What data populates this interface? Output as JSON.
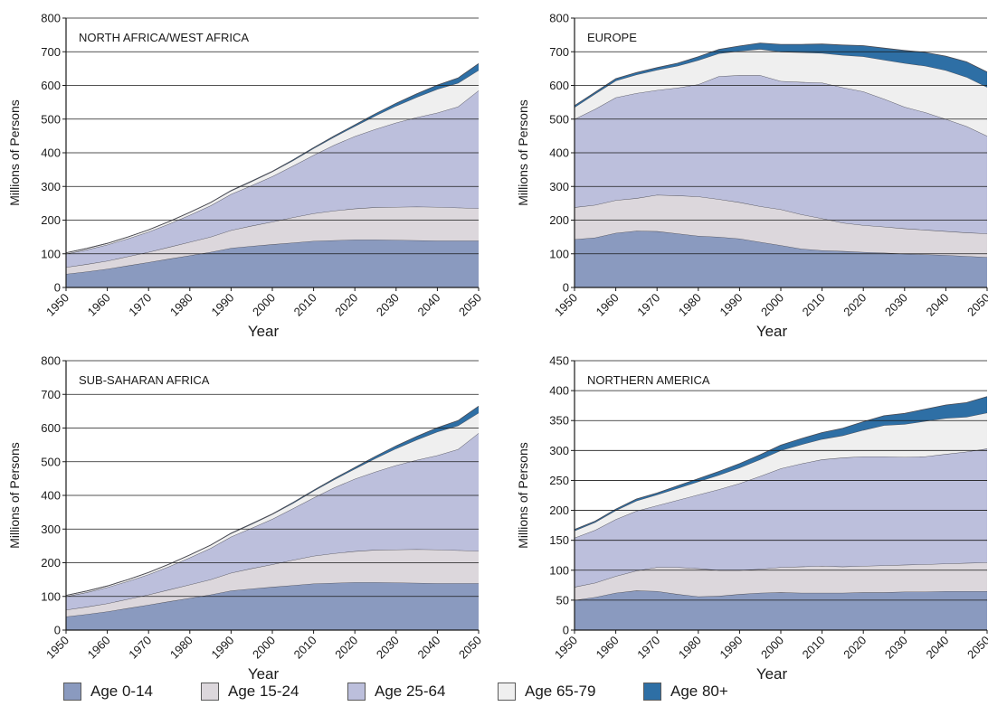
{
  "chart_data": [
    {
      "type": "area",
      "title": "NORTH AFRICA/WEST AFRICA",
      "xlabel": "Year",
      "ylabel": "Millions of Persons",
      "ylim": [
        0,
        800
      ],
      "yticks": [
        0,
        100,
        200,
        300,
        400,
        500,
        600,
        700,
        800
      ],
      "stacked": true,
      "grid": true,
      "x": [
        1950,
        1955,
        1960,
        1965,
        1970,
        1975,
        1980,
        1985,
        1990,
        1995,
        2000,
        2005,
        2010,
        2015,
        2020,
        2025,
        2030,
        2035,
        2040,
        2045,
        2050
      ],
      "series": [
        {
          "name": "Age 0-14",
          "values": [
            40,
            47,
            55,
            65,
            75,
            85,
            95,
            105,
            117,
            123,
            128,
            133,
            138,
            140,
            142,
            142,
            141,
            140,
            139,
            139,
            139
          ]
        },
        {
          "name": "Age 15-24",
          "values": [
            20,
            22,
            24,
            27,
            30,
            35,
            40,
            45,
            53,
            60,
            67,
            75,
            82,
            88,
            92,
            96,
            98,
            100,
            100,
            98,
            96
          ]
        },
        {
          "name": "Age 25-64",
          "values": [
            40,
            43,
            48,
            53,
            60,
            69,
            80,
            93,
            107,
            120,
            135,
            153,
            173,
            195,
            215,
            232,
            250,
            265,
            280,
            300,
            350
          ]
        },
        {
          "name": "Age 65-79",
          "values": [
            3,
            4,
            4,
            5,
            6,
            7,
            8,
            9,
            10,
            12,
            14,
            16,
            20,
            24,
            30,
            40,
            50,
            60,
            70,
            70,
            60
          ]
        },
        {
          "name": "Age 80+",
          "values": [
            0,
            0,
            0,
            0,
            0,
            0,
            0,
            0,
            1,
            1,
            1,
            2,
            2,
            3,
            4,
            6,
            8,
            10,
            12,
            15,
            20
          ]
        }
      ]
    },
    {
      "type": "area",
      "title": "EUROPE",
      "xlabel": "Year",
      "ylabel": "Millions of Persons",
      "ylim": [
        0,
        800
      ],
      "yticks": [
        0,
        100,
        200,
        300,
        400,
        500,
        600,
        700,
        800
      ],
      "stacked": true,
      "grid": true,
      "x": [
        1950,
        1955,
        1960,
        1965,
        1970,
        1975,
        1980,
        1985,
        1990,
        1995,
        2000,
        2005,
        2010,
        2015,
        2020,
        2025,
        2030,
        2035,
        2040,
        2045,
        2050
      ],
      "series": [
        {
          "name": "Age 0-14",
          "values": [
            143,
            148,
            162,
            168,
            167,
            160,
            153,
            150,
            145,
            135,
            125,
            115,
            110,
            108,
            105,
            103,
            100,
            98,
            96,
            93,
            90
          ]
        },
        {
          "name": "Age 15-24",
          "values": [
            95,
            97,
            97,
            97,
            108,
            113,
            117,
            112,
            108,
            106,
            107,
            102,
            95,
            84,
            80,
            77,
            75,
            73,
            71,
            70,
            70
          ]
        },
        {
          "name": "Age 25-64",
          "values": [
            262,
            285,
            305,
            312,
            311,
            320,
            333,
            365,
            377,
            389,
            381,
            393,
            403,
            402,
            397,
            380,
            361,
            349,
            333,
            316,
            290
          ]
        },
        {
          "name": "Age 65-79",
          "values": [
            35,
            45,
            50,
            55,
            60,
            65,
            72,
            68,
            72,
            78,
            87,
            88,
            88,
            96,
            104,
            116,
            130,
            138,
            145,
            146,
            145
          ]
        },
        {
          "name": "Age 80+",
          "values": [
            5,
            5,
            6,
            6,
            7,
            8,
            10,
            12,
            15,
            18,
            22,
            24,
            27,
            30,
            32,
            35,
            38,
            40,
            42,
            45,
            45
          ]
        }
      ]
    },
    {
      "type": "area",
      "title": "SUB-SAHARAN AFRICA",
      "xlabel": "Year",
      "ylabel": "Millions of Persons",
      "ylim": [
        0,
        800
      ],
      "yticks": [
        0,
        100,
        200,
        300,
        400,
        500,
        600,
        700,
        800
      ],
      "stacked": true,
      "grid": true,
      "x": [
        1950,
        1955,
        1960,
        1965,
        1970,
        1975,
        1980,
        1985,
        1990,
        1995,
        2000,
        2005,
        2010,
        2015,
        2020,
        2025,
        2030,
        2035,
        2040,
        2045,
        2050
      ],
      "series": [
        {
          "name": "Age 0-14",
          "values": [
            40,
            47,
            55,
            65,
            75,
            85,
            95,
            105,
            117,
            123,
            128,
            133,
            138,
            140,
            142,
            142,
            141,
            140,
            139,
            139,
            139
          ]
        },
        {
          "name": "Age 15-24",
          "values": [
            20,
            22,
            24,
            27,
            30,
            35,
            40,
            45,
            53,
            60,
            67,
            75,
            82,
            88,
            92,
            96,
            98,
            100,
            100,
            98,
            96
          ]
        },
        {
          "name": "Age 25-64",
          "values": [
            40,
            43,
            48,
            53,
            60,
            69,
            80,
            93,
            107,
            120,
            135,
            153,
            173,
            195,
            215,
            232,
            250,
            265,
            280,
            300,
            350
          ]
        },
        {
          "name": "Age 65-79",
          "values": [
            3,
            4,
            4,
            5,
            6,
            7,
            8,
            9,
            10,
            12,
            14,
            16,
            20,
            24,
            30,
            40,
            50,
            60,
            70,
            70,
            60
          ]
        },
        {
          "name": "Age 80+",
          "values": [
            0,
            0,
            0,
            0,
            0,
            0,
            0,
            0,
            1,
            1,
            1,
            2,
            2,
            3,
            4,
            6,
            8,
            10,
            12,
            15,
            20
          ]
        }
      ]
    },
    {
      "type": "area",
      "title": "NORTHERN AMERICA",
      "xlabel": "Year",
      "ylabel": "Millions of Persons",
      "ylim": [
        0,
        450
      ],
      "yticks": [
        0,
        50,
        100,
        150,
        200,
        250,
        300,
        350,
        400,
        450
      ],
      "stacked": true,
      "grid": true,
      "x": [
        1950,
        1955,
        1960,
        1965,
        1970,
        1975,
        1980,
        1985,
        1990,
        1995,
        2000,
        2005,
        2010,
        2015,
        2020,
        2025,
        2030,
        2035,
        2040,
        2045,
        2050
      ],
      "series": [
        {
          "name": "Age 0-14",
          "values": [
            50,
            55,
            62,
            66,
            65,
            60,
            56,
            57,
            60,
            62,
            63,
            62,
            62,
            62,
            63,
            63,
            64,
            64,
            65,
            65,
            65
          ]
        },
        {
          "name": "Age 15-24",
          "values": [
            22,
            24,
            28,
            33,
            40,
            45,
            47,
            43,
            40,
            40,
            42,
            44,
            45,
            44,
            44,
            45,
            45,
            46,
            46,
            47,
            48
          ]
        },
        {
          "name": "Age 25-64",
          "values": [
            82,
            88,
            95,
            100,
            103,
            112,
            123,
            135,
            145,
            155,
            165,
            172,
            178,
            182,
            183,
            182,
            180,
            180,
            183,
            186,
            190
          ]
        },
        {
          "name": "Age 65-79",
          "values": [
            12,
            13,
            15,
            17,
            18,
            20,
            22,
            24,
            26,
            28,
            30,
            32,
            34,
            37,
            44,
            52,
            55,
            59,
            60,
            58,
            60
          ]
        },
        {
          "name": "Age 80+",
          "values": [
            2,
            2,
            2,
            3,
            3,
            4,
            5,
            6,
            7,
            8,
            9,
            10,
            11,
            12,
            14,
            16,
            18,
            20,
            22,
            24,
            27
          ]
        }
      ]
    }
  ],
  "legend": [
    {
      "label": "Age 0-14",
      "color": "#8a9abf"
    },
    {
      "label": "Age 15-24",
      "color": "#dcd7dc"
    },
    {
      "label": "Age 25-64",
      "color": "#bcbfdc"
    },
    {
      "label": "Age 65-79",
      "color": "#efefef"
    },
    {
      "label": "Age 80+",
      "color": "#2e6fa5"
    }
  ],
  "colors": {
    "fills": [
      "#8a9abf",
      "#dcd7dc",
      "#bcbfdc",
      "#efefef",
      "#2e6fa5"
    ],
    "edge": "#4a4a52",
    "grid": "#1a1a1a"
  }
}
